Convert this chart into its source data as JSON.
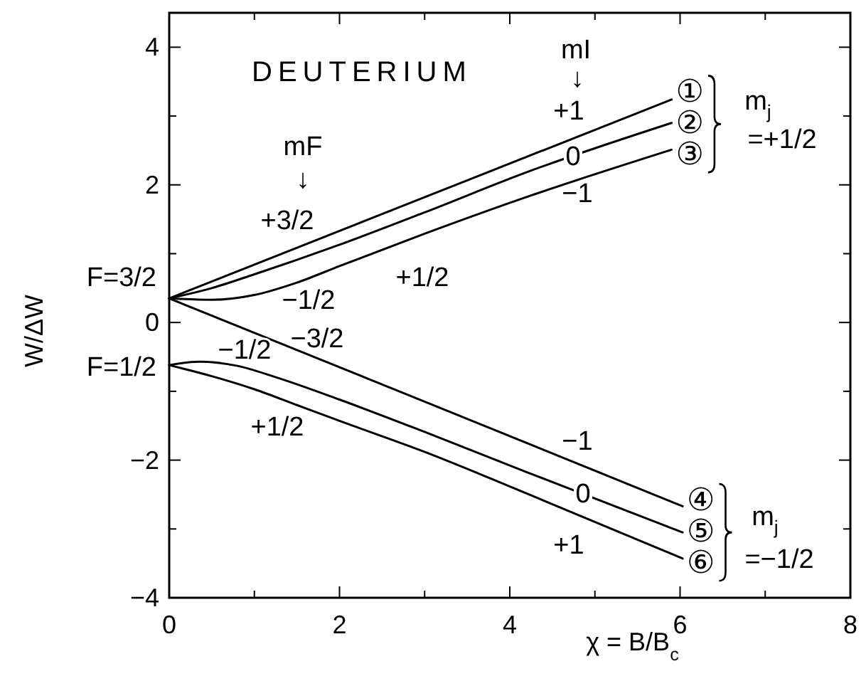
{
  "chart_data": {
    "type": "line",
    "title": "DEUTERIUM",
    "xlabel": "χ = B/B$_{c}$",
    "ylabel": "W/ΔW",
    "xlim": [
      0,
      8
    ],
    "ylim": [
      -4,
      4.5
    ],
    "xticks": [
      0,
      {
        "value": 1,
        "label": null
      },
      2,
      {
        "value": 3,
        "label": null
      },
      4,
      {
        "value": 5,
        "label": null
      },
      6,
      {
        "value": 7,
        "label": null
      },
      8
    ],
    "yticks": [
      -4,
      {
        "value": -3,
        "label": null
      },
      -2,
      {
        "value": -1,
        "label": null
      },
      0,
      {
        "value": 1,
        "label": null
      },
      2,
      {
        "value": 3,
        "label": null
      },
      4
    ],
    "series": [
      {
        "name": "①",
        "color": "#000000",
        "x": [
          0,
          3.02,
          5.9
        ],
        "values": [
          0.35,
          1.83,
          3.24
        ]
      },
      {
        "name": "②",
        "color": "#000000",
        "x": [
          0,
          0.5,
          1,
          2,
          3,
          4.19,
          5.9
        ],
        "values": [
          0.35,
          0.5,
          0.7,
          1.13,
          1.6,
          2.18,
          2.9
        ]
      },
      {
        "name": "③",
        "color": "#000000",
        "x": [
          0,
          0.5,
          1,
          1.5,
          2,
          3,
          4.19,
          5.9
        ],
        "values": [
          0.35,
          0.33,
          0.4,
          0.58,
          0.82,
          1.29,
          1.82,
          2.51
        ]
      },
      {
        "name": "④",
        "color": "#000000",
        "x": [
          0,
          3.02,
          6.03
        ],
        "values": [
          0.35,
          -1.16,
          -2.67
        ]
      },
      {
        "name": "⑤",
        "color": "#000000",
        "x": [
          0,
          0.35,
          0.8,
          1.24,
          2,
          3,
          4.19,
          6.03
        ],
        "values": [
          -0.62,
          -0.57,
          -0.63,
          -0.79,
          -1.12,
          -1.59,
          -2.17,
          -3.05
        ]
      },
      {
        "name": "⑥",
        "color": "#000000",
        "x": [
          0,
          0.5,
          1,
          1.5,
          2,
          3.02,
          3.86,
          6.03
        ],
        "values": [
          -0.62,
          -0.78,
          -0.97,
          -1.2,
          -1.43,
          -1.89,
          -2.31,
          -3.43
        ]
      }
    ],
    "annotations": [
      "mF",
      "↓",
      "+3/2",
      "F=3/2",
      "−1/2",
      "+1/2",
      "−3/2",
      "F=1/2",
      "−1/2",
      "+1/2",
      "mI",
      "↓",
      "+1",
      "0",
      "−1",
      "m$_{j}$",
      "=+1/2",
      "−1",
      "0",
      "+1",
      "m$_{j}$",
      "=−1/2"
    ]
  }
}
